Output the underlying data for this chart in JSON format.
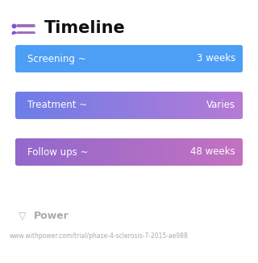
{
  "title": "Timeline",
  "background_color": "#ffffff",
  "rows": [
    {
      "label": "Screening ~",
      "value": "3 weeks",
      "color_left": "#4d9ef5",
      "color_right": "#4d9ef5"
    },
    {
      "label": "Treatment ~",
      "value": "Varies",
      "color_left": "#6b7de8",
      "color_right": "#b87ad4"
    },
    {
      "label": "Follow ups ~",
      "value": "48 weeks",
      "color_left": "#9068cc",
      "color_right": "#c472c0"
    }
  ],
  "footer_logo": "Power",
  "footer_url": "www.withpower.com/trial/phase-4-sclerosis-7-2015-ae988",
  "title_fontsize": 15,
  "label_fontsize": 8.5,
  "value_fontsize": 8.5,
  "footer_fontsize": 5.5,
  "icon_color": "#7b52d4"
}
